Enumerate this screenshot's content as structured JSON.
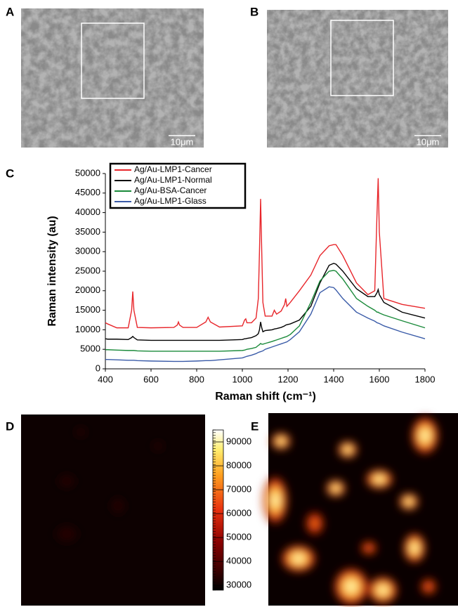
{
  "panel_labels": [
    "A",
    "B",
    "C",
    "D",
    "E"
  ],
  "scale_bars": [
    "10μm",
    "10μm"
  ],
  "chart_data": {
    "type": "line",
    "xlabel": "Raman shift (cm⁻¹)",
    "ylabel": "Raman intensity (au)",
    "x": [
      400,
      410,
      450,
      500,
      515,
      520,
      525,
      540,
      600,
      700,
      715,
      720,
      725,
      740,
      800,
      840,
      850,
      860,
      900,
      1000,
      1010,
      1015,
      1020,
      1040,
      1060,
      1070,
      1075,
      1080,
      1085,
      1090,
      1100,
      1130,
      1140,
      1150,
      1170,
      1185,
      1190,
      1195,
      1210,
      1250,
      1300,
      1340,
      1380,
      1400,
      1410,
      1440,
      1500,
      1550,
      1580,
      1590,
      1595,
      1600,
      1620,
      1700,
      1800
    ],
    "series": [
      {
        "name": "Ag/Au-LMP1-Cancer",
        "color": "#e8262b",
        "values": [
          11800,
          11500,
          10500,
          10500,
          15000,
          19800,
          15000,
          10600,
          10500,
          10600,
          11200,
          12000,
          11200,
          10600,
          10600,
          12000,
          13200,
          12000,
          10700,
          11000,
          12500,
          12800,
          11800,
          11800,
          13000,
          18000,
          30000,
          43500,
          30000,
          17000,
          13500,
          13500,
          15000,
          14000,
          14800,
          16500,
          18000,
          16000,
          17000,
          20000,
          24000,
          29000,
          31500,
          31800,
          31800,
          29000,
          22000,
          19000,
          20000,
          40000,
          48800,
          35000,
          18000,
          16500,
          15500
        ]
      },
      {
        "name": "Ag/Au-LMP1-Normal",
        "color": "#000000",
        "values": [
          7700,
          7600,
          7600,
          7500,
          8000,
          8300,
          8000,
          7400,
          7300,
          7300,
          7300,
          7300,
          7300,
          7300,
          7300,
          7300,
          7300,
          7300,
          7300,
          7500,
          7700,
          7700,
          7800,
          8000,
          8500,
          9000,
          10000,
          12000,
          10500,
          9500,
          9800,
          10000,
          10200,
          10300,
          10600,
          11000,
          11200,
          11300,
          11500,
          12500,
          16000,
          22000,
          26500,
          27000,
          26800,
          25000,
          20500,
          18500,
          18500,
          19500,
          20300,
          19000,
          17000,
          14500,
          13000
        ]
      },
      {
        "name": "Ag/Au-BSA-Cancer",
        "color": "#1a8a3a",
        "values": [
          4900,
          4900,
          4800,
          4700,
          4700,
          4700,
          4700,
          4600,
          4500,
          4500,
          4500,
          4500,
          4500,
          4500,
          4500,
          4500,
          4500,
          4500,
          4500,
          4700,
          4800,
          4900,
          5000,
          5200,
          5500,
          6000,
          6200,
          6500,
          6300,
          6300,
          6500,
          7000,
          7200,
          7400,
          7800,
          8100,
          8200,
          8300,
          8800,
          11000,
          17000,
          22500,
          25000,
          25200,
          25000,
          23000,
          18000,
          16000,
          15000,
          14500,
          14500,
          14300,
          13800,
          12300,
          10500
        ]
      },
      {
        "name": "Ag/Au-LMP1-Glass",
        "color": "#3a5ba8",
        "values": [
          2400,
          2400,
          2300,
          2200,
          2200,
          2200,
          2200,
          2100,
          2000,
          1900,
          1900,
          1900,
          1900,
          1900,
          2000,
          2100,
          2100,
          2100,
          2300,
          2800,
          3000,
          3100,
          3200,
          3500,
          3900,
          4200,
          4300,
          4400,
          4500,
          4600,
          5000,
          5600,
          5800,
          6000,
          6400,
          6700,
          6800,
          6900,
          7500,
          9500,
          14000,
          19500,
          21000,
          20800,
          20200,
          18000,
          14500,
          13000,
          12200,
          11800,
          11700,
          11600,
          11000,
          9400,
          7700
        ]
      }
    ],
    "xlim": [
      400,
      1800
    ],
    "xticks": [
      400,
      600,
      800,
      1000,
      1200,
      1400,
      1600,
      1800
    ],
    "ylim": [
      0,
      50000
    ],
    "yticks": [
      0,
      5000,
      10000,
      15000,
      20000,
      25000,
      30000,
      35000,
      40000,
      45000,
      50000
    ],
    "legend": "upper-left"
  },
  "colorbar": {
    "ylim": [
      28000,
      95000
    ],
    "yticks": [
      30000,
      40000,
      50000,
      60000,
      70000,
      80000,
      90000
    ]
  }
}
